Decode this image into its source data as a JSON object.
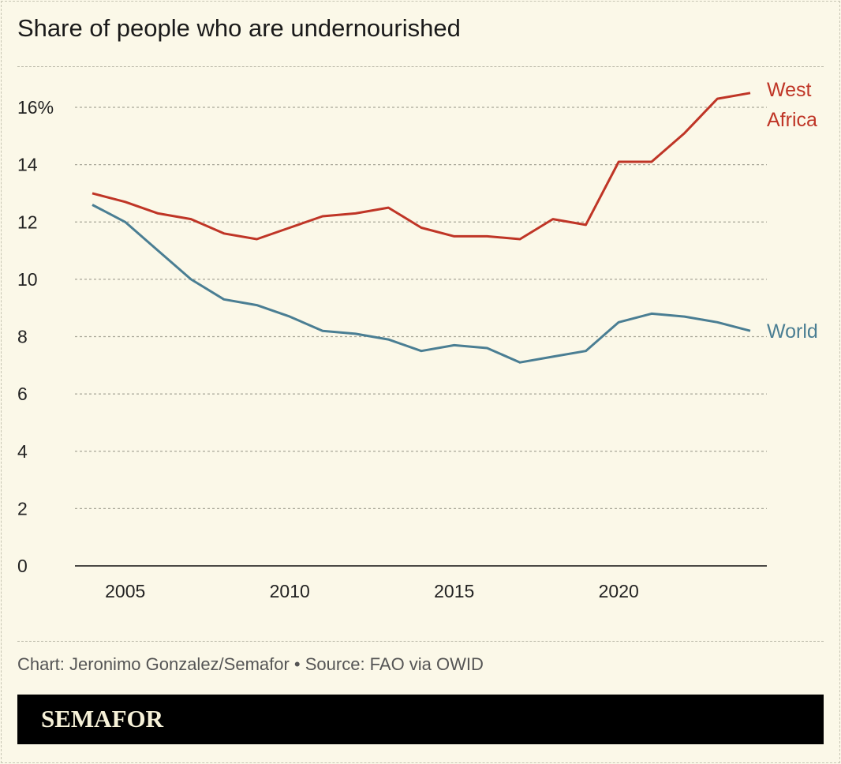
{
  "chart_data": {
    "type": "line",
    "title": "Share of people who are undernourished",
    "x": [
      2004,
      2005,
      2006,
      2007,
      2008,
      2009,
      2010,
      2011,
      2012,
      2013,
      2014,
      2015,
      2016,
      2017,
      2018,
      2019,
      2020,
      2021,
      2022,
      2023,
      2024
    ],
    "series": [
      {
        "name": "West Africa",
        "color": "#bf3526",
        "values": [
          13.0,
          12.7,
          12.3,
          12.1,
          11.6,
          11.4,
          11.8,
          12.2,
          12.3,
          12.5,
          11.8,
          11.5,
          11.5,
          11.4,
          12.1,
          11.9,
          14.1,
          14.1,
          15.1,
          16.3,
          16.5
        ]
      },
      {
        "name": "World",
        "color": "#4a7e93",
        "values": [
          12.6,
          12.0,
          11.0,
          10.0,
          9.3,
          9.1,
          8.7,
          8.2,
          8.1,
          7.9,
          7.5,
          7.7,
          7.6,
          7.1,
          7.3,
          7.5,
          8.5,
          8.8,
          8.7,
          8.5,
          8.2
        ]
      }
    ],
    "label_lines": {
      "West Africa": [
        "West",
        "Africa"
      ],
      "World": [
        "World"
      ]
    },
    "ylim": [
      0,
      16
    ],
    "yticks": [
      0,
      2,
      4,
      6,
      8,
      10,
      12,
      14,
      16
    ],
    "ytick_labels": [
      "0",
      "2",
      "4",
      "6",
      "8",
      "10",
      "12",
      "14",
      "16%"
    ],
    "xticks": [
      2005,
      2010,
      2015,
      2020
    ],
    "xtick_labels": [
      "2005",
      "2010",
      "2015",
      "2020"
    ],
    "xlabel": "",
    "ylabel": "",
    "grid": true,
    "legend": "direct labels at line ends"
  },
  "footer": {
    "source": "Chart: Jeronimo Gonzalez/Semafor • Source: FAO via OWID",
    "logo": "SEMAFOR"
  }
}
